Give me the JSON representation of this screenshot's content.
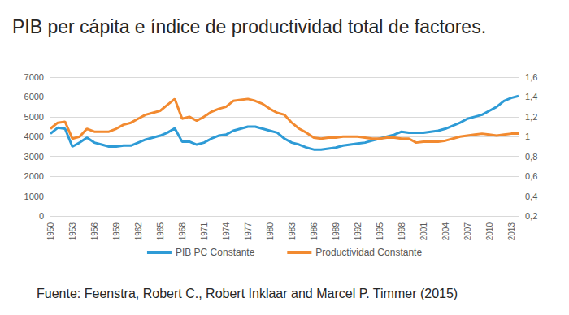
{
  "chart_data": {
    "type": "line",
    "title": "PIB per cápita e índice de productividad total de factores.",
    "annotations": [
      "Fuente: Feenstra, Robert C., Robert Inklaar and Marcel P. Timmer (2015)"
    ],
    "categories": [
      "1950",
      null,
      null,
      "1953",
      null,
      null,
      "1956",
      null,
      null,
      "1959",
      null,
      null,
      "1962",
      null,
      null,
      "1965",
      null,
      null,
      "1968",
      null,
      null,
      "1971",
      null,
      null,
      "1974",
      null,
      null,
      "1977",
      null,
      null,
      "1980",
      null,
      null,
      "1983",
      null,
      null,
      "1986",
      null,
      null,
      "1989",
      null,
      null,
      "1992",
      null,
      null,
      "1995",
      null,
      null,
      "1998",
      null,
      null,
      "2001",
      null,
      null,
      "2004",
      null,
      null,
      "2007",
      null,
      null,
      "2010",
      null,
      null,
      "2013",
      null
    ],
    "series": [
      {
        "name": "PIB PC Constante",
        "color": "#2e9bd6",
        "values": [
          4150,
          4450,
          4400,
          3500,
          3700,
          3950,
          3700,
          3600,
          3500,
          3500,
          3550,
          3550,
          3700,
          3850,
          3950,
          4050,
          4200,
          4420,
          3750,
          3750,
          3600,
          3700,
          3900,
          4050,
          4100,
          4300,
          4400,
          4500,
          4500,
          4400,
          4300,
          4200,
          3900,
          3700,
          3600,
          3450,
          3350,
          3350,
          3400,
          3450,
          3550,
          3600,
          3650,
          3700,
          3800,
          3900,
          4000,
          4100,
          4250,
          4200,
          4200,
          4200,
          4250,
          4300,
          4400,
          4550,
          4700,
          4900,
          5000,
          5100,
          5300,
          5500,
          5800,
          5950,
          6050
        ]
      },
      {
        "name": "Productividad Constante",
        "color": "#f28a30",
        "axis": "y2",
        "values": [
          1.08,
          1.14,
          1.15,
          0.98,
          1.0,
          1.08,
          1.05,
          1.05,
          1.05,
          1.08,
          1.12,
          1.14,
          1.18,
          1.22,
          1.24,
          1.26,
          1.32,
          1.38,
          1.18,
          1.2,
          1.16,
          1.2,
          1.25,
          1.28,
          1.3,
          1.36,
          1.37,
          1.38,
          1.36,
          1.33,
          1.28,
          1.24,
          1.22,
          1.14,
          1.08,
          1.04,
          0.99,
          0.98,
          0.99,
          0.99,
          1.0,
          1.0,
          1.0,
          0.99,
          0.98,
          0.98,
          0.99,
          0.99,
          0.98,
          0.98,
          0.94,
          0.95,
          0.95,
          0.95,
          0.96,
          0.98,
          1.0,
          1.01,
          1.02,
          1.03,
          1.02,
          1.01,
          1.02,
          1.03,
          1.03
        ]
      }
    ],
    "ylim": [
      0,
      7000
    ],
    "yticks": [
      0,
      1000,
      2000,
      3000,
      4000,
      5000,
      6000,
      7000
    ],
    "y2lim": [
      0.2,
      1.6
    ],
    "y2ticks": [
      {
        "value": 0.2,
        "label": "0,2"
      },
      {
        "value": 0.4,
        "label": "0,4"
      },
      {
        "value": 0.6,
        "label": "0,6"
      },
      {
        "value": 0.8,
        "label": "0,8"
      },
      1,
      {
        "value": 1.2,
        "label": "1,2"
      },
      {
        "value": 1.4,
        "label": "1,4"
      },
      {
        "value": 1.6,
        "label": "1,6"
      }
    ],
    "grid": true,
    "legend": "bottom"
  }
}
